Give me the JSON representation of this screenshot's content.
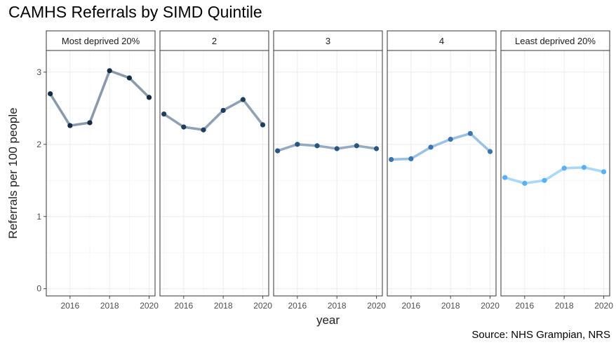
{
  "title": "CAMHS Referrals by SIMD Quintile",
  "source": "Source: NHS Grampian, NRS",
  "chart_data": {
    "type": "line",
    "facet_by": "SIMD quintile",
    "xlabel": "year",
    "ylabel": "Referrals per 100 people",
    "x": [
      2015,
      2016,
      2017,
      2018,
      2019,
      2020
    ],
    "x_ticks": [
      2016,
      2018,
      2020
    ],
    "x_tick_labels": [
      "2016",
      "2018",
      "2020"
    ],
    "xlim": [
      2014.8,
      2020.3
    ],
    "ylim": [
      -0.1,
      3.3
    ],
    "y_ticks": [
      0,
      1,
      2,
      3
    ],
    "y_tick_labels": [
      "0",
      "1",
      "2",
      "3"
    ],
    "grid": true,
    "panels": [
      {
        "label": "Most deprived 20%",
        "values": [
          2.7,
          2.26,
          2.3,
          3.02,
          2.92,
          2.65
        ],
        "point_color": "#132b43",
        "line_color": "#8a9aaa"
      },
      {
        "label": "2",
        "values": [
          2.42,
          2.24,
          2.2,
          2.47,
          2.62,
          2.27
        ],
        "point_color": "#1d3f5e",
        "line_color": "#8fa2b4"
      },
      {
        "label": "3",
        "values": [
          1.91,
          2.0,
          1.98,
          1.94,
          1.98,
          1.94
        ],
        "point_color": "#29557e",
        "line_color": "#94abc2"
      },
      {
        "label": "4",
        "values": [
          1.79,
          1.8,
          1.96,
          2.07,
          2.15,
          1.9
        ],
        "point_color": "#3a75b0",
        "line_color": "#9cc2e3"
      },
      {
        "label": "Least deprived 20%",
        "values": [
          1.54,
          1.46,
          1.5,
          1.67,
          1.68,
          1.62
        ],
        "point_color": "#56b1f7",
        "line_color": "#aad8f7"
      }
    ]
  }
}
